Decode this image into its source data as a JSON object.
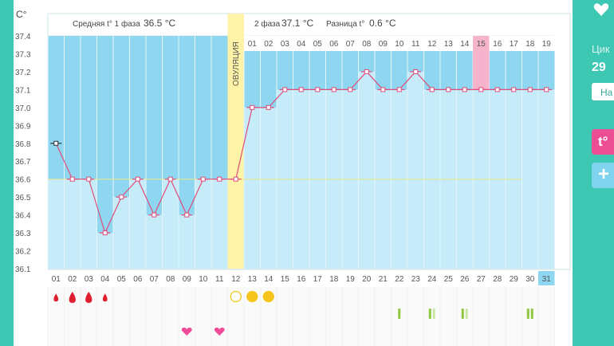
{
  "header": {
    "unit": "C°",
    "phase1_label": "Средняя t° 1 фаза",
    "phase1_value": "36.5 °C",
    "phase2_label": "2 фаза",
    "phase2_value": "37.1 °C",
    "diff_label": "Разница t°",
    "diff_value": "0.6 °C"
  },
  "ovulation_label": "ОВУЛЯЦИЯ",
  "side_panel": {
    "label": "Цик",
    "value": "29",
    "button_label": "На",
    "pink_button": "t°",
    "plus_button": "+"
  },
  "chart_data": {
    "type": "line",
    "ylabel": "C°",
    "ylim": [
      36.1,
      37.4
    ],
    "yticks": [
      "37.4",
      "37.3",
      "37.2",
      "37.1",
      "37.0",
      "36.9",
      "36.8",
      "36.7",
      "36.6",
      "36.5",
      "36.4",
      "36.3",
      "36.2",
      "36.1"
    ],
    "days": [
      "01",
      "02",
      "03",
      "04",
      "05",
      "06",
      "07",
      "08",
      "09",
      "10",
      "11",
      "12",
      "13",
      "14",
      "15",
      "16",
      "17",
      "18",
      "19",
      "20",
      "21",
      "22",
      "23",
      "24",
      "25",
      "26",
      "27",
      "28",
      "29",
      "30",
      "31"
    ],
    "phase2_days": [
      "01",
      "02",
      "03",
      "04",
      "05",
      "06",
      "07",
      "08",
      "09",
      "10",
      "11",
      "12",
      "13",
      "14",
      "15",
      "16",
      "17",
      "18",
      "19"
    ],
    "temperatures": [
      36.8,
      36.6,
      36.6,
      36.3,
      36.5,
      36.6,
      36.4,
      36.6,
      36.4,
      36.6,
      36.6,
      36.6,
      37.0,
      37.0,
      37.1,
      37.1,
      37.1,
      37.1,
      37.1,
      37.2,
      37.1,
      37.1,
      37.2,
      37.1,
      37.1,
      37.1,
      37.1,
      37.1,
      37.1,
      37.1,
      37.1
    ],
    "coverline": 36.6,
    "ovulation_day": 12,
    "current_day": 31,
    "highlight_phase2_day": "15",
    "markers": {
      "menstruation": [
        {
          "day": 1,
          "size": "small"
        },
        {
          "day": 2,
          "size": "large"
        },
        {
          "day": 3,
          "size": "large"
        },
        {
          "day": 4,
          "size": "small"
        }
      ],
      "ovulation_tests": [
        {
          "day": 12,
          "filled": false
        },
        {
          "day": 13,
          "filled": true
        },
        {
          "day": 14,
          "filled": true
        }
      ],
      "hearts": [
        9,
        11
      ],
      "pregnancy_tests": [
        {
          "day": 22,
          "lines": 1
        },
        {
          "day": 24,
          "lines": 2
        },
        {
          "day": 26,
          "lines": 2
        },
        {
          "day": 30,
          "lines": 2
        }
      ]
    },
    "colors": {
      "low_fill": "#8fd6f0",
      "high_fill": "#c6ebf9",
      "ovulation": "#fff3a8",
      "line": "#e04d7a",
      "pink_highlight": "#f6b3cc",
      "current_day": "#8fd6f0",
      "blood": "#e02030",
      "ov_test": "#f6c51d",
      "heart": "#f04b9a",
      "preg_test": "#8dc63f"
    }
  }
}
